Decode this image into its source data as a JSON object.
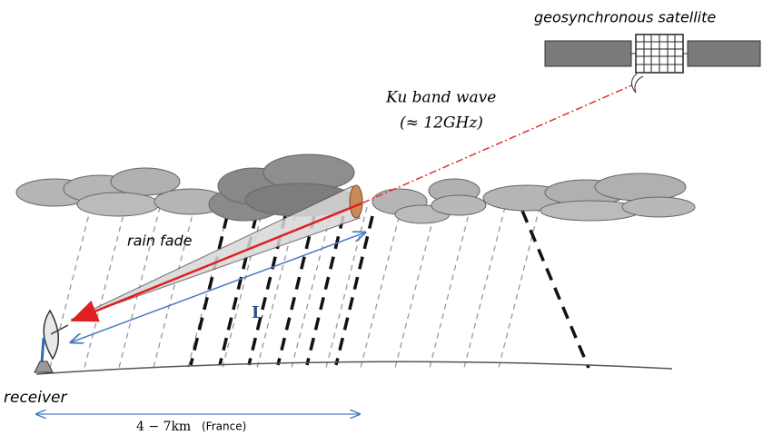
{
  "satellite_label": "geosynchronous satellite",
  "wave_label": "Ku band wave",
  "frequency_label": "(≈ 12GHz)",
  "rain_fade_label": "rain fade",
  "path_length_label": "L",
  "receiver_label": "receiver",
  "distance_label": "4 − 7km",
  "distance_note": "(France)"
}
